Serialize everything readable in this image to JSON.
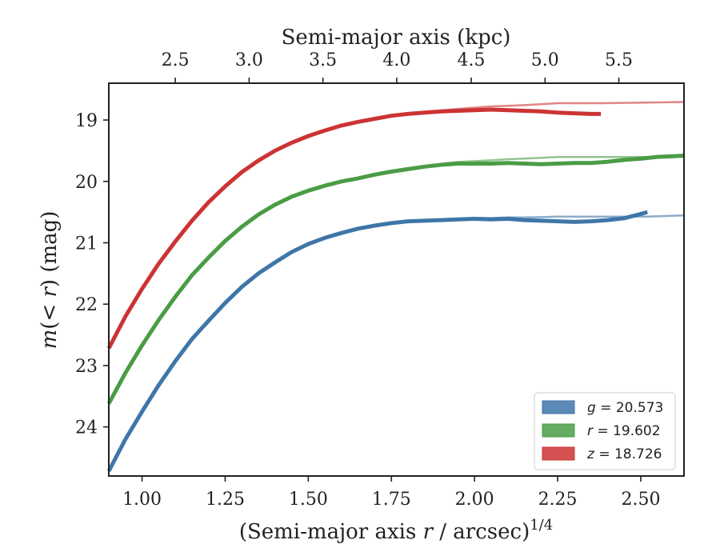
{
  "chart_data": {
    "type": "line",
    "title": "",
    "xlabel": "(Semi-major axis r / arcsec)",
    "xlabel_parts": {
      "prefix": "(Semi-major axis ",
      "var": "r",
      "suffix": " / arcsec)",
      "sup": "1/4"
    },
    "ylabel": "m(< r) (mag)",
    "ylabel_parts": {
      "m": "m",
      "mid": "(< ",
      "r": "r",
      "end": ") (mag)"
    },
    "top_xlabel": "Semi-major axis (kpc)",
    "xlim": [
      0.9,
      2.63
    ],
    "ylim": [
      24.8,
      18.4
    ],
    "y_inverted": true,
    "x_ticks": [
      "1.00",
      "1.25",
      "1.50",
      "1.75",
      "2.00",
      "2.25",
      "2.50"
    ],
    "x_tick_values": [
      1.0,
      1.25,
      1.5,
      1.75,
      2.0,
      2.25,
      2.5
    ],
    "y_ticks": [
      "19",
      "20",
      "21",
      "22",
      "23",
      "24"
    ],
    "y_tick_values": [
      19,
      20,
      21,
      22,
      23,
      24
    ],
    "top_x_ticks": [
      "2.5",
      "3.0",
      "3.5",
      "4.0",
      "4.5",
      "5.0",
      "5.5"
    ],
    "top_x_tick_positions": [
      1.1,
      1.322,
      1.544,
      1.766,
      1.99,
      2.212,
      2.434
    ],
    "legend_position": "lower right",
    "grid": false,
    "series": [
      {
        "name": "g = 20.573",
        "legend": {
          "var": "g",
          "value": " = 20.573"
        },
        "color": "#3f76a9",
        "x": [
          0.9,
          0.95,
          1.0,
          1.05,
          1.1,
          1.15,
          1.2,
          1.25,
          1.3,
          1.35,
          1.4,
          1.45,
          1.5,
          1.55,
          1.6,
          1.65,
          1.7,
          1.75,
          1.8,
          1.85,
          1.9,
          1.95,
          2.0,
          2.05,
          2.1,
          2.15,
          2.2,
          2.25,
          2.3,
          2.35,
          2.4,
          2.45,
          2.5,
          2.52
        ],
        "y": [
          24.72,
          24.2,
          23.75,
          23.32,
          22.93,
          22.57,
          22.27,
          21.98,
          21.72,
          21.5,
          21.32,
          21.15,
          21.02,
          20.92,
          20.84,
          20.77,
          20.72,
          20.68,
          20.65,
          20.64,
          20.63,
          20.62,
          20.61,
          20.62,
          20.61,
          20.63,
          20.64,
          20.65,
          20.66,
          20.65,
          20.63,
          20.6,
          20.53,
          20.5
        ],
        "model_y_end": 20.573
      },
      {
        "name": "r = 19.602",
        "legend": {
          "var": "r",
          "value": " = 19.602"
        },
        "color": "#4a9c45",
        "x": [
          0.9,
          0.95,
          1.0,
          1.05,
          1.1,
          1.15,
          1.2,
          1.25,
          1.3,
          1.35,
          1.4,
          1.45,
          1.5,
          1.55,
          1.6,
          1.65,
          1.7,
          1.75,
          1.8,
          1.85,
          1.9,
          1.95,
          2.0,
          2.05,
          2.1,
          2.15,
          2.2,
          2.25,
          2.3,
          2.35,
          2.4,
          2.45,
          2.5,
          2.55,
          2.6,
          2.63
        ],
        "y": [
          23.62,
          23.12,
          22.67,
          22.26,
          21.88,
          21.53,
          21.24,
          20.97,
          20.74,
          20.54,
          20.38,
          20.25,
          20.15,
          20.07,
          20.0,
          19.95,
          19.89,
          19.84,
          19.8,
          19.76,
          19.73,
          19.71,
          19.71,
          19.71,
          19.7,
          19.71,
          19.72,
          19.71,
          19.7,
          19.7,
          19.68,
          19.65,
          19.63,
          19.6,
          19.59,
          19.58
        ],
        "model_y_end": 19.602
      },
      {
        "name": "z = 18.726",
        "legend": {
          "var": "z",
          "value": " = 18.726"
        },
        "color": "#cc3333",
        "x": [
          0.9,
          0.95,
          1.0,
          1.05,
          1.1,
          1.15,
          1.2,
          1.25,
          1.3,
          1.35,
          1.4,
          1.45,
          1.5,
          1.55,
          1.6,
          1.65,
          1.7,
          1.75,
          1.8,
          1.85,
          1.9,
          1.95,
          2.0,
          2.05,
          2.1,
          2.15,
          2.2,
          2.25,
          2.3,
          2.35,
          2.38
        ],
        "y": [
          22.72,
          22.2,
          21.75,
          21.34,
          20.98,
          20.64,
          20.34,
          20.08,
          19.85,
          19.66,
          19.5,
          19.37,
          19.26,
          19.17,
          19.09,
          19.03,
          18.98,
          18.93,
          18.9,
          18.88,
          18.86,
          18.85,
          18.84,
          18.83,
          18.84,
          18.85,
          18.86,
          18.88,
          18.89,
          18.9,
          18.9
        ],
        "model_y_end": 18.726
      }
    ]
  }
}
